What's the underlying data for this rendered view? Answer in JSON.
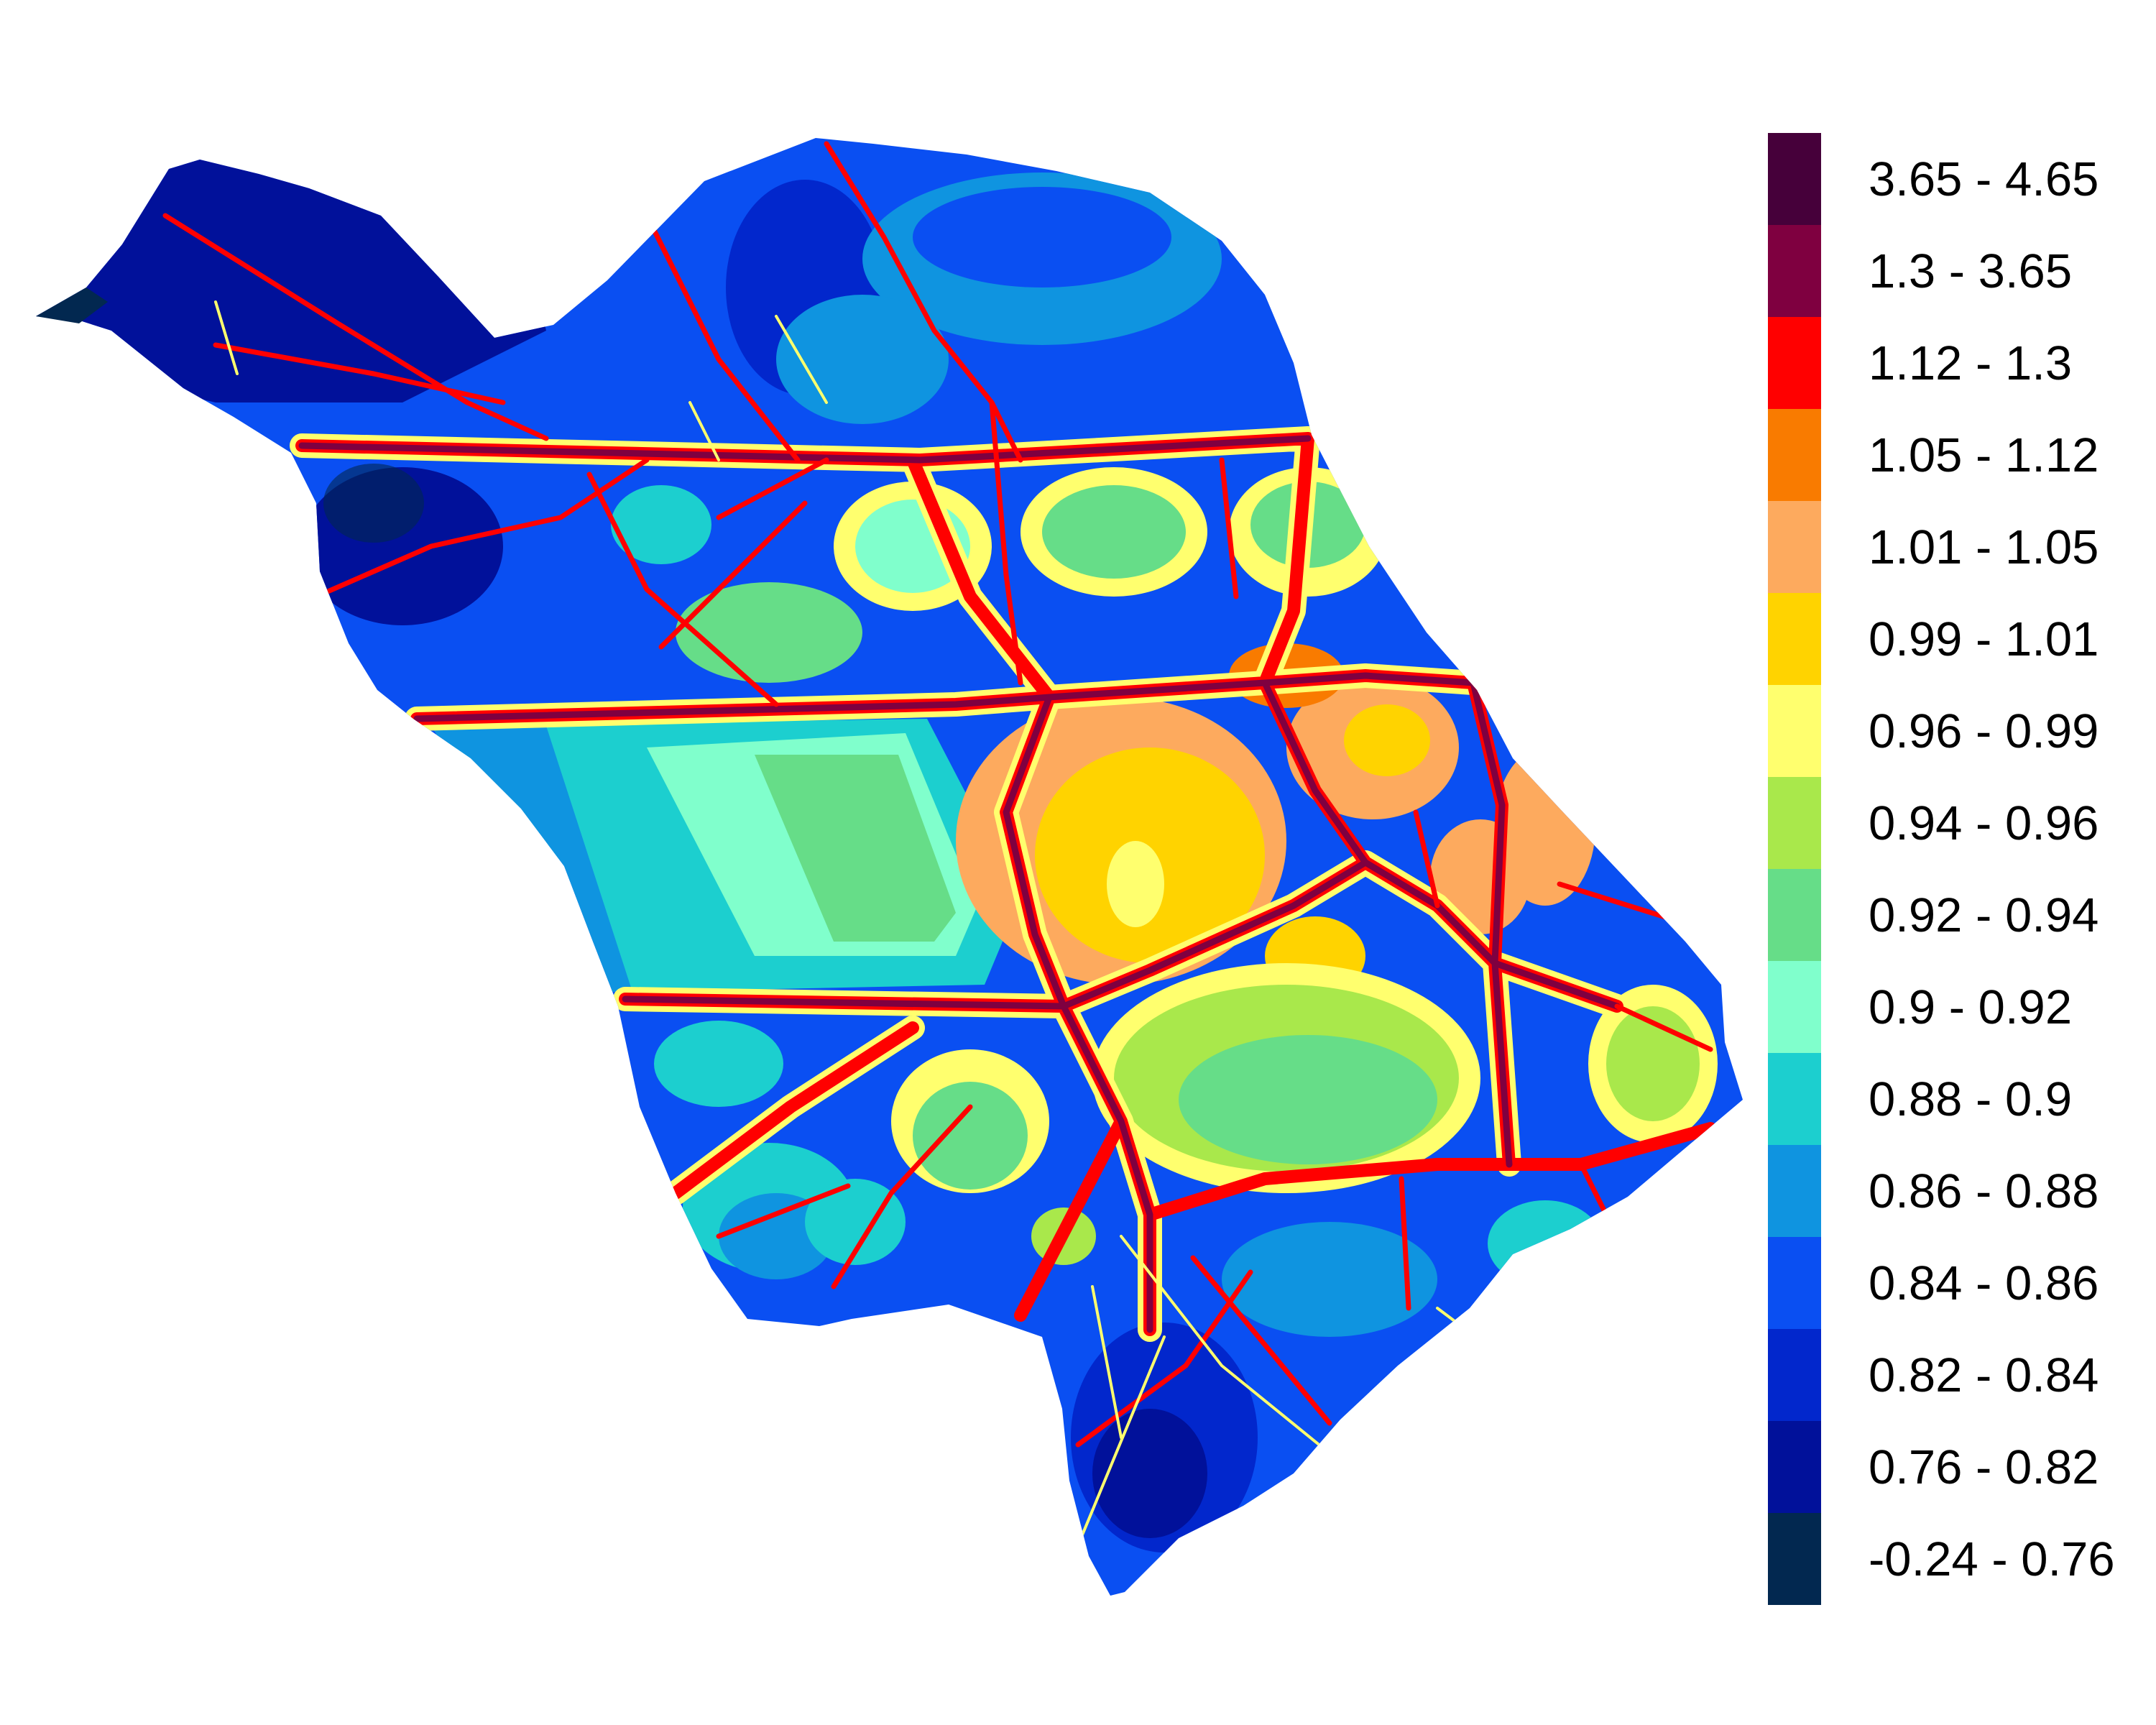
{
  "legend": {
    "classes": [
      {
        "label": "3.65 - 4.65",
        "color": "#46003a"
      },
      {
        "label": "1.3 - 3.65",
        "color": "#7f0040"
      },
      {
        "label": "1.12 - 1.3",
        "color": "#ff0000"
      },
      {
        "label": "1.05 - 1.12",
        "color": "#f97b00"
      },
      {
        "label": "1.01 - 1.05",
        "color": "#fdaa5e"
      },
      {
        "label": "0.99 - 1.01",
        "color": "#ffd300"
      },
      {
        "label": "0.96 - 0.99",
        "color": "#ffff6e"
      },
      {
        "label": "0.94 - 0.96",
        "color": "#a9e84b"
      },
      {
        "label": "0.92 - 0.94",
        "color": "#66dd88"
      },
      {
        "label": "0.9 - 0.92",
        "color": "#80ffcc"
      },
      {
        "label": "0.88 - 0.9",
        "color": "#1ccfcf"
      },
      {
        "label": "0.86 - 0.88",
        "color": "#0f94e0"
      },
      {
        "label": "0.84 - 0.86",
        "color": "#0a4ff2"
      },
      {
        "label": "0.82 - 0.84",
        "color": "#0227cc"
      },
      {
        "label": "0.76 - 0.82",
        "color": "#01119a"
      },
      {
        "label": "-0.24 - 0.76",
        "color": "#022850"
      }
    ]
  }
}
